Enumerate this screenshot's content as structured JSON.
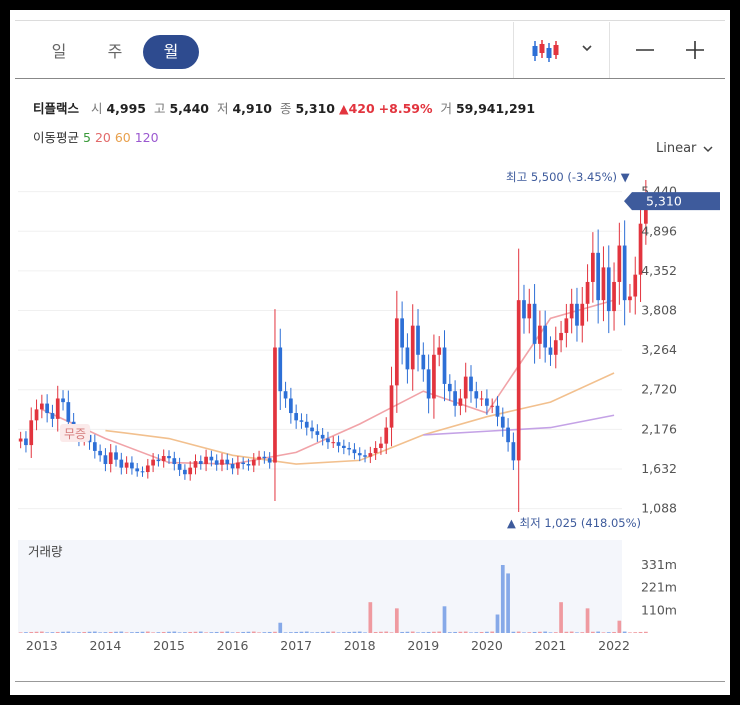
{
  "tabs": [
    {
      "label": "일",
      "active": false
    },
    {
      "label": "주",
      "active": false
    },
    {
      "label": "월",
      "active": true
    }
  ],
  "toolbar": {
    "chart_type_icon": "candlestick-icon",
    "dropdown_icon": "chevron-down-icon",
    "zoom_out_icon": "minus-icon",
    "zoom_in_icon": "plus-icon"
  },
  "quote": {
    "name": "티플랙스",
    "open_label": "시",
    "open": "4,995",
    "high_label": "고",
    "high": "5,440",
    "low_label": "저",
    "low": "4,910",
    "close_label": "종",
    "close": "5,310",
    "change": "▲420",
    "change_pct": "+8.59%",
    "volume_label": "거",
    "volume": "59,941,291"
  },
  "moving_average": {
    "label": "이동평균",
    "periods": [
      {
        "label": "5",
        "color": "#3a9a3a"
      },
      {
        "label": "20",
        "color": "#e26a6a"
      },
      {
        "label": "60",
        "color": "#e8a04c"
      },
      {
        "label": "120",
        "color": "#9b59d0"
      }
    ]
  },
  "scale_selector": {
    "label": "Linear",
    "icon": "chevron-down-icon"
  },
  "colors": {
    "up": "#e2343e",
    "down": "#2d6fd6",
    "accent": "#2e4b8f",
    "price_tag": "#3e5b9c"
  },
  "chart_data": {
    "type": "candlestick",
    "price_axis": {
      "ticks": [
        "5,440",
        "4,896",
        "4,352",
        "3,808",
        "3,264",
        "2,720",
        "2,176",
        "1,632",
        "1,088"
      ],
      "range": [
        1000,
        5600
      ]
    },
    "current_price_tag": "5,310",
    "high_annotation": "최고 5,500 (-3.45%) ▼",
    "low_annotation": "▲ 최저 1,025 (418.05%)",
    "event_marker": "무증",
    "volume_label": "거래량",
    "volume_axis": {
      "ticks": [
        "331m",
        "221m",
        "110m"
      ]
    },
    "x_labels": [
      "2013",
      "2014",
      "2015",
      "2016",
      "2017",
      "2018",
      "2019",
      "2020",
      "2021",
      "2022"
    ],
    "time_range": [
      "2012-09",
      "2022-02"
    ],
    "monthly_closes": [
      2050,
      1960,
      2300,
      2450,
      2530,
      2400,
      2320,
      2600,
      2550,
      2280,
      2140,
      2050,
      2100,
      2000,
      1880,
      1820,
      1700,
      1860,
      1760,
      1650,
      1720,
      1640,
      1600,
      1590,
      1680,
      1760,
      1740,
      1810,
      1780,
      1700,
      1620,
      1560,
      1650,
      1740,
      1700,
      1800,
      1750,
      1690,
      1760,
      1700,
      1640,
      1720,
      1700,
      1680,
      1760,
      1800,
      1780,
      1720,
      3300,
      2700,
      2600,
      2400,
      2300,
      2280,
      2200,
      2150,
      2100,
      2050,
      2000,
      2000,
      1950,
      1920,
      1900,
      1850,
      1820,
      1800,
      1850,
      1920,
      1980,
      2200,
      2780,
      3700,
      3300,
      3000,
      3600,
      3200,
      3000,
      2600,
      3200,
      3300,
      2800,
      2700,
      2500,
      2600,
      2900,
      2700,
      2600,
      2600,
      2500,
      2500,
      2350,
      2200,
      2000,
      1750,
      3950,
      3700,
      3900,
      3350,
      3600,
      3300,
      3200,
      3400,
      3500,
      3700,
      3900,
      3600,
      3900,
      4200,
      4600,
      3950,
      4400,
      3800,
      4200,
      4700,
      3950,
      4000,
      4300,
      5000,
      5310
    ],
    "ma_values_at_x_labels": {
      "ma20": [
        2450,
        2050,
        1720,
        1700,
        1860,
        2250,
        2700,
        2400,
        3700,
        3950
      ],
      "ma60": [
        null,
        2160,
        2050,
        1820,
        1700,
        1750,
        2100,
        2350,
        2550,
        2950
      ],
      "ma120": [
        null,
        null,
        null,
        null,
        null,
        null,
        2100,
        2150,
        2200,
        2370
      ]
    },
    "volume_highlights_m": [
      {
        "period": "2016-10",
        "value": 50
      },
      {
        "period": "2018-03",
        "value": 150
      },
      {
        "period": "2018-08",
        "value": 120
      },
      {
        "period": "2019-05",
        "value": 130
      },
      {
        "period": "2020-03",
        "value": 90
      },
      {
        "period": "2020-04",
        "value": 331
      },
      {
        "period": "2020-05",
        "value": 290
      },
      {
        "period": "2021-03",
        "value": 150
      },
      {
        "period": "2021-08",
        "value": 120
      },
      {
        "period": "2022-02",
        "value": 60
      }
    ]
  }
}
